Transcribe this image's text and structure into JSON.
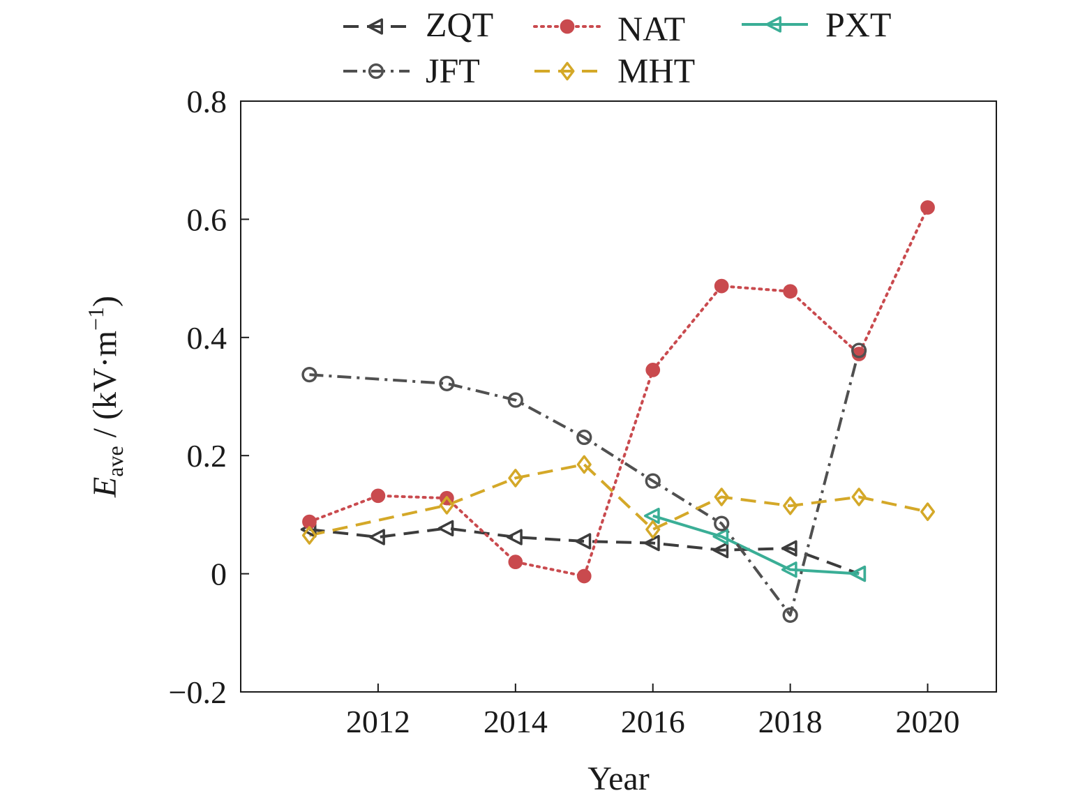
{
  "chart_data": {
    "type": "line",
    "xlabel": "Year",
    "ylabel_main": "E",
    "ylabel_sub": "ave",
    "ylabel_rest": " / (kV·m",
    "ylabel_sup": "−1",
    "ylabel_close": ")",
    "xlim": [
      2010.0,
      2021.0
    ],
    "ylim": [
      -0.2,
      0.8
    ],
    "xticks": [
      2012,
      2014,
      2016,
      2018,
      2020
    ],
    "xtick_labels": [
      "2012",
      "2014",
      "2016",
      "2018",
      "2020"
    ],
    "yticks": [
      -0.2,
      0,
      0.2,
      0.4,
      0.6,
      0.8
    ],
    "ytick_labels": [
      "−0.2",
      "0",
      "0.2",
      "0.4",
      "0.6",
      "0.8"
    ],
    "legend_position": "top (outside plot, two rows)",
    "grid": false,
    "series": [
      {
        "name": "ZQT",
        "color": "#3c3c3c",
        "marker": "triangle-left-open",
        "linestyle": "dashed",
        "x": [
          2011,
          2012,
          2013,
          2014,
          2015,
          2016,
          2017,
          2018,
          2019
        ],
        "y": [
          0.075,
          0.062,
          0.077,
          0.062,
          0.055,
          0.052,
          0.04,
          0.043,
          0.0
        ]
      },
      {
        "name": "NAT",
        "color": "#c94a4e",
        "marker": "circle-filled",
        "linestyle": "dotted",
        "x": [
          2011,
          2012,
          2013,
          2014,
          2015,
          2016,
          2017,
          2018,
          2019,
          2020
        ],
        "y": [
          0.088,
          0.132,
          0.128,
          0.02,
          -0.004,
          0.345,
          0.487,
          0.478,
          0.372,
          0.62
        ]
      },
      {
        "name": "PXT",
        "color": "#3aae96",
        "marker": "triangle-left-open",
        "linestyle": "solid",
        "x": [
          2016,
          2017,
          2018,
          2019
        ],
        "y": [
          0.098,
          0.063,
          0.007,
          0.0
        ]
      },
      {
        "name": "JFT",
        "color": "#505050",
        "marker": "circle-open",
        "linestyle": "dashdot",
        "x": [
          2011,
          2013,
          2014,
          2015,
          2016,
          2017,
          2018,
          2019
        ],
        "y": [
          0.337,
          0.322,
          0.294,
          0.231,
          0.157,
          0.085,
          -0.07,
          0.378
        ]
      },
      {
        "name": "MHT",
        "color": "#d4a828",
        "marker": "diamond-open",
        "linestyle": "dashed",
        "x": [
          2011,
          2013,
          2014,
          2015,
          2016,
          2017,
          2018,
          2019,
          2020
        ],
        "y": [
          0.065,
          0.116,
          0.162,
          0.185,
          0.075,
          0.13,
          0.115,
          0.13,
          0.105
        ]
      }
    ]
  }
}
